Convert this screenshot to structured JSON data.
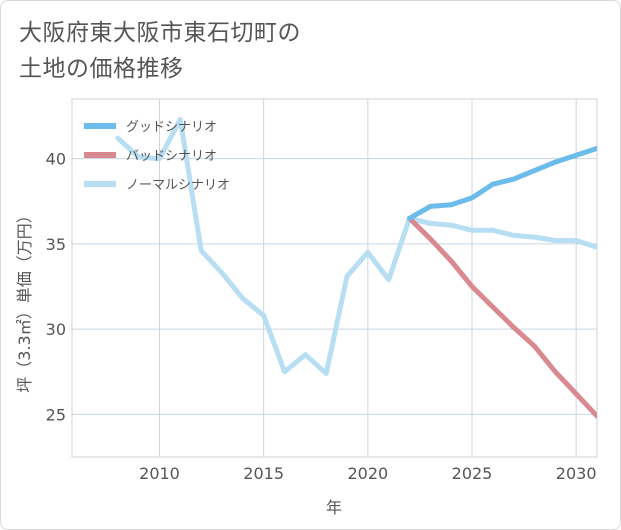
{
  "title_lines": [
    "大阪府東大阪市東石切町の",
    "土地の価格推移"
  ],
  "chart_data": {
    "type": "line",
    "title": "大阪府東大阪市東石切町の土地の価格推移",
    "xlabel": "年",
    "ylabel": "坪（3.3㎡）単価（万円）",
    "xlim": [
      2005.8,
      2031
    ],
    "ylim": [
      22.5,
      43.5
    ],
    "xticks": [
      2010,
      2015,
      2020,
      2025,
      2030
    ],
    "yticks": [
      25,
      30,
      35,
      40
    ],
    "grid": true,
    "legend_position": "top-left",
    "series": [
      {
        "name": "グッドシナリオ",
        "color": "#6bbbeb",
        "x": [
          2022,
          2023,
          2024,
          2025,
          2026,
          2027,
          2028,
          2029,
          2030,
          2031
        ],
        "y": [
          36.5,
          37.2,
          37.3,
          37.7,
          38.5,
          38.8,
          39.3,
          39.8,
          40.2,
          40.6
        ]
      },
      {
        "name": "バッドシナリオ",
        "color": "#d98a91",
        "x": [
          2022,
          2023,
          2024,
          2025,
          2026,
          2027,
          2028,
          2029,
          2030,
          2031
        ],
        "y": [
          36.5,
          35.3,
          34.0,
          32.5,
          31.3,
          30.1,
          29.0,
          27.5,
          26.2,
          24.9
        ]
      },
      {
        "name": "ノーマルシナリオ",
        "color": "#b7def2",
        "x": [
          2008,
          2009,
          2010,
          2011,
          2012,
          2013,
          2014,
          2015,
          2016,
          2017,
          2018,
          2019,
          2020,
          2021,
          2022,
          2023,
          2024,
          2025,
          2026,
          2027,
          2028,
          2029,
          2030,
          2031
        ],
        "y": [
          41.2,
          40.1,
          40.0,
          42.3,
          34.6,
          33.3,
          31.8,
          30.8,
          27.5,
          28.5,
          27.4,
          33.1,
          34.5,
          32.9,
          36.5,
          36.2,
          36.1,
          35.8,
          35.8,
          35.5,
          35.4,
          35.2,
          35.2,
          34.8
        ]
      }
    ]
  }
}
